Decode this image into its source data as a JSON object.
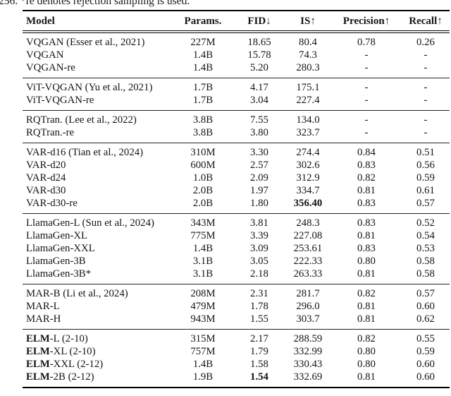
{
  "caption_tail": "256. *re denotes rejection sampling is used.",
  "table": {
    "columns": [
      {
        "key": "model",
        "label": "Model"
      },
      {
        "key": "params",
        "label": "Params."
      },
      {
        "key": "fid",
        "label": "FID↓"
      },
      {
        "key": "is",
        "label": "IS↑"
      },
      {
        "key": "precision",
        "label": "Precision↑"
      },
      {
        "key": "recall",
        "label": "Recall↑"
      }
    ],
    "sections": [
      {
        "rows": [
          {
            "model": "VQGAN (Esser et al., 2021)",
            "params": "227M",
            "fid": "18.65",
            "is": "80.4",
            "precision": "0.78",
            "recall": "0.26"
          },
          {
            "model": "VQGAN",
            "params": "1.4B",
            "fid": "15.78",
            "is": "74.3",
            "precision": "-",
            "recall": "-"
          },
          {
            "model": "VQGAN-re",
            "params": "1.4B",
            "fid": "5.20",
            "is": "280.3",
            "precision": "-",
            "recall": "-"
          }
        ]
      },
      {
        "rows": [
          {
            "model": "ViT-VQGAN (Yu et al., 2021)",
            "params": "1.7B",
            "fid": "4.17",
            "is": "175.1",
            "precision": "-",
            "recall": "-"
          },
          {
            "model": "ViT-VQGAN-re",
            "params": "1.7B",
            "fid": "3.04",
            "is": "227.4",
            "precision": "-",
            "recall": "-"
          }
        ]
      },
      {
        "rows": [
          {
            "model": "RQTran. (Lee et al., 2022)",
            "params": "3.8B",
            "fid": "7.55",
            "is": "134.0",
            "precision": "-",
            "recall": "-"
          },
          {
            "model": "RQTran.-re",
            "params": "3.8B",
            "fid": "3.80",
            "is": "323.7",
            "precision": "-",
            "recall": "-"
          }
        ]
      },
      {
        "rows": [
          {
            "model": "VAR-d16 (Tian et al., 2024)",
            "params": "310M",
            "fid": "3.30",
            "is": "274.4",
            "precision": "0.84",
            "recall": "0.51"
          },
          {
            "model": "VAR-d20",
            "params": "600M",
            "fid": "2.57",
            "is": "302.6",
            "precision": "0.83",
            "recall": "0.56"
          },
          {
            "model": "VAR-d24",
            "params": "1.0B",
            "fid": "2.09",
            "is": "312.9",
            "precision": "0.82",
            "recall": "0.59"
          },
          {
            "model": "VAR-d30",
            "params": "2.0B",
            "fid": "1.97",
            "is": "334.7",
            "precision": "0.81",
            "recall": "0.61"
          },
          {
            "model": "VAR-d30-re",
            "params": "2.0B",
            "fid": "1.80",
            "is": "356.40",
            "is_bold": true,
            "precision": "0.83",
            "recall": "0.57"
          }
        ]
      },
      {
        "rows": [
          {
            "model": "LlamaGen-L (Sun et al., 2024)",
            "params": "343M",
            "fid": "3.81",
            "is": "248.3",
            "precision": "0.83",
            "recall": "0.52"
          },
          {
            "model": "LlamaGen-XL",
            "params": "775M",
            "fid": "3.39",
            "is": "227.08",
            "precision": "0.81",
            "recall": "0.54"
          },
          {
            "model": "LlamaGen-XXL",
            "params": "1.4B",
            "fid": "3.09",
            "is": "253.61",
            "precision": "0.83",
            "recall": "0.53"
          },
          {
            "model": "LlamaGen-3B",
            "params": "3.1B",
            "fid": "3.05",
            "is": "222.33",
            "precision": "0.80",
            "recall": "0.58"
          },
          {
            "model": "LlamaGen-3B*",
            "params": "3.1B",
            "fid": "2.18",
            "is": "263.33",
            "precision": "0.81",
            "recall": "0.58"
          }
        ]
      },
      {
        "rows": [
          {
            "model": "MAR-B (Li et al., 2024)",
            "params": "208M",
            "fid": "2.31",
            "is": "281.7",
            "precision": "0.82",
            "recall": "0.57"
          },
          {
            "model": "MAR-L",
            "params": "479M",
            "fid": "1.78",
            "is": "296.0",
            "precision": "0.81",
            "recall": "0.60"
          },
          {
            "model": "MAR-H",
            "params": "943M",
            "fid": "1.55",
            "is": "303.7",
            "precision": "0.81",
            "recall": "0.62"
          }
        ]
      },
      {
        "rows": [
          {
            "model_bold": "ELM",
            "model": "-L (2-10)",
            "params": "315M",
            "fid": "2.17",
            "is": "288.59",
            "precision": "0.82",
            "recall": "0.55"
          },
          {
            "model_bold": "ELM",
            "model": "-XL (2-10)",
            "params": "757M",
            "fid": "1.79",
            "is": "332.99",
            "precision": "0.80",
            "recall": "0.59"
          },
          {
            "model_bold": "ELM",
            "model": "-XXL (2-12)",
            "params": "1.4B",
            "fid": "1.58",
            "is": "330.43",
            "precision": "0.80",
            "recall": "0.60"
          },
          {
            "model_bold": "ELM",
            "model": "-2B (2-12)",
            "params": "1.9B",
            "fid": "1.54",
            "fid_bold": true,
            "is": "332.69",
            "precision": "0.81",
            "recall": "0.60"
          }
        ]
      }
    ]
  }
}
